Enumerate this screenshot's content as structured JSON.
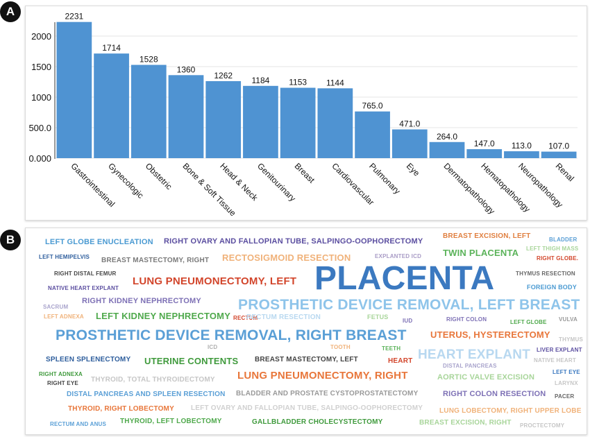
{
  "panel_labels": {
    "a": "A",
    "b": "B"
  },
  "chart_data": {
    "type": "bar",
    "categories": [
      "Gastrointestinal",
      "Gynecologic",
      "Obstetric",
      "Bone & Soft Tissue",
      "Head & Neck",
      "Genitourinary",
      "Breast",
      "Cardiovascular",
      "Pulmonary",
      "Eye",
      "Dermatopathology",
      "Hematopathology",
      "Neuropathology",
      "Renal"
    ],
    "values": [
      2231,
      1714,
      1528,
      1360,
      1262,
      1184,
      1153,
      1144,
      765,
      471,
      264,
      147,
      113,
      107
    ],
    "value_labels": [
      "2231",
      "1714",
      "1528",
      "1360",
      "1262",
      "1184",
      "1153",
      "1144",
      "765.0",
      "471.0",
      "264.0",
      "147.0",
      "113.0",
      "107.0"
    ],
    "yticks": [
      0,
      500,
      1000,
      1500,
      2000
    ],
    "ytick_labels": [
      "0.000",
      "500.0",
      "1000",
      "1500",
      "2000"
    ],
    "ylim": [
      0,
      2250
    ],
    "bar_color": "#4f93d2",
    "grid": true,
    "title": "",
    "xlabel": "",
    "ylabel": ""
  },
  "word_cloud": [
    {
      "text": "PLACENTA",
      "color": "#3b79c0"
    },
    {
      "text": "PROSTHETIC DEVICE REMOVAL, RIGHT BREAST",
      "color": "#5a9fd6"
    },
    {
      "text": "PROSTHETIC DEVICE REMOVAL, LEFT BREAST",
      "color": "#8ec4ea"
    },
    {
      "text": "HEART EXPLANT",
      "color": "#b8d8f0"
    },
    {
      "text": "LUNG PNEUMONECTOMY, LEFT",
      "color": "#d2452b"
    },
    {
      "text": "LUNG PNEUMONECTOMY, RIGHT",
      "color": "#e8763a"
    },
    {
      "text": "RIGHT OVARY AND FALLOPIAN TUBE, SALPINGO-OOPHORECTOMY",
      "color": "#5b4ea0"
    },
    {
      "text": "RECTOSIGMOID RESECTION",
      "color": "#f0b27a"
    },
    {
      "text": "LEFT GLOBE ENUCLEATION",
      "color": "#4a9ad2"
    },
    {
      "text": "BREAST EXCISION, LEFT",
      "color": "#e07f3f"
    },
    {
      "text": "BLADDER",
      "color": "#5a9fd6"
    },
    {
      "text": "TWIN PLACENTA",
      "color": "#5bb35a"
    },
    {
      "text": "LEFT THIGH MASS",
      "color": "#a8d59a"
    },
    {
      "text": "LEFT HEMIPELVIS",
      "color": "#2d5d9c"
    },
    {
      "text": "BREAST MASTECTOMY, RIGHT",
      "color": "#7a7a7a"
    },
    {
      "text": "EXPLANTED ICD",
      "color": "#a99cc6"
    },
    {
      "text": "RIGHT GLOBE.",
      "color": "#d2452b"
    },
    {
      "text": "RIGHT DISTAL FEMUR",
      "color": "#444444"
    },
    {
      "text": "THYMUS RESECTION",
      "color": "#666666"
    },
    {
      "text": "NATIVE HEART EXPLANT",
      "color": "#5b4ea0"
    },
    {
      "text": "FOREIGN BODY",
      "color": "#4a9ad2"
    },
    {
      "text": "RIGHT KIDNEY NEPHRECTOMY",
      "color": "#7d70b5"
    },
    {
      "text": "SACRUM",
      "color": "#a9a4cc"
    },
    {
      "text": "LEFT ADNEXA",
      "color": "#f0b27a"
    },
    {
      "text": "LEFT KIDNEY NEPHRECTOMY",
      "color": "#4fa94c"
    },
    {
      "text": "RECTUM",
      "color": "#d2452b"
    },
    {
      "text": "RECTUM RESECTION",
      "color": "#b8d8f0"
    },
    {
      "text": "FETUS",
      "color": "#a8d59a"
    },
    {
      "text": "IUD",
      "color": "#7d70b5"
    },
    {
      "text": "RIGHT COLON",
      "color": "#7d70b5"
    },
    {
      "text": "LEFT GLOBE",
      "color": "#4fa94c"
    },
    {
      "text": "VULVA",
      "color": "#999999"
    },
    {
      "text": "UTERUS, HYSTERECTOMY",
      "color": "#e8763a"
    },
    {
      "text": "THYMUS",
      "color": "#c6c6c6"
    },
    {
      "text": "ICD",
      "color": "#b0b0b0"
    },
    {
      "text": "TOOTH",
      "color": "#f0b27a"
    },
    {
      "text": "TEETH",
      "color": "#5bb35a"
    },
    {
      "text": "LIVER EXPLANT",
      "color": "#5b4ea0"
    },
    {
      "text": "SPLEEN SPLENECTOMY",
      "color": "#2d5d9c"
    },
    {
      "text": "UTERINE CONTENTS",
      "color": "#3f9a3c"
    },
    {
      "text": "BREAST MASTECTOMY, LEFT",
      "color": "#444444"
    },
    {
      "text": "HEART",
      "color": "#d2452b"
    },
    {
      "text": "NATIVE HEART",
      "color": "#c6c6c6"
    },
    {
      "text": "DISTAL PANCREAS",
      "color": "#a9a4cc"
    },
    {
      "text": "LEFT EYE",
      "color": "#3b79c0"
    },
    {
      "text": "LARYNX",
      "color": "#c6c6c6"
    },
    {
      "text": "RIGHT ADNEXA",
      "color": "#3f9a3c"
    },
    {
      "text": "RIGHT EYE",
      "color": "#444444"
    },
    {
      "text": "THYROID, TOTAL THYROIDECTOMY",
      "color": "#c6c6c6"
    },
    {
      "text": "AORTIC VALVE EXCISION",
      "color": "#a8d59a"
    },
    {
      "text": "DISTAL PANCREAS AND SPLEEN RESECTION",
      "color": "#5a9fd6"
    },
    {
      "text": "BLADDER AND PROSTATE CYSTOPROSTATECTOMY",
      "color": "#999999"
    },
    {
      "text": "RIGHT COLON RESECTION",
      "color": "#7d70b5"
    },
    {
      "text": "PACER",
      "color": "#666666"
    },
    {
      "text": "THYROID, RIGHT LOBECTOMY",
      "color": "#e8763a"
    },
    {
      "text": "LEFT OVARY AND FALLOPIAN TUBE, SALPINGO-OOPHORECTOMY",
      "color": "#d0d0d0"
    },
    {
      "text": "LUNG LOBECTOMY, RIGHT UPPER LOBE",
      "color": "#f0b27a"
    },
    {
      "text": "RECTUM AND ANUS",
      "color": "#5a9fd6"
    },
    {
      "text": "THYROID, LEFT LOBECTOMY",
      "color": "#4fa94c"
    },
    {
      "text": "GALLBLADDER CHOLECYSTECTOMY",
      "color": "#3f9a3c"
    },
    {
      "text": "BREAST EXCISION, RIGHT",
      "color": "#a8d59a"
    },
    {
      "text": "PROCTECTOMY",
      "color": "#c6c6c6"
    }
  ]
}
